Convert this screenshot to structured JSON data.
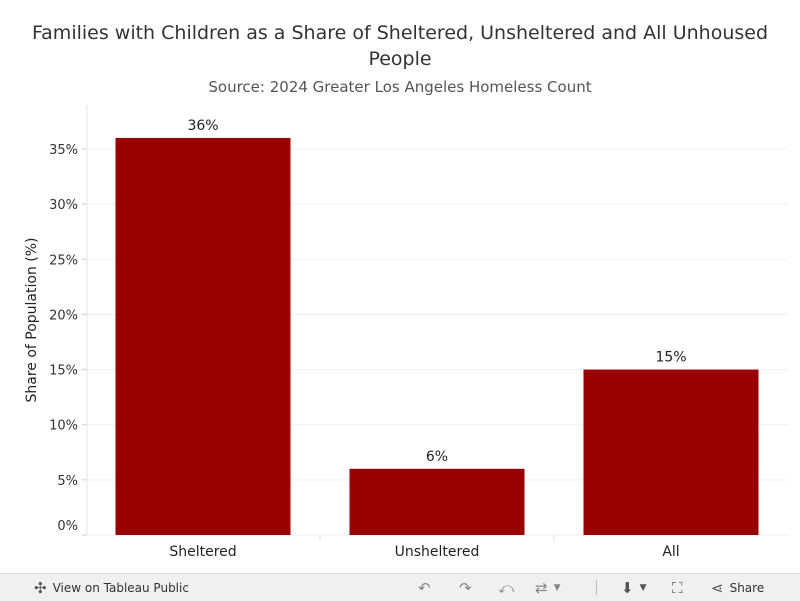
{
  "chart_data": {
    "type": "bar",
    "title": "Families with Children as a Share of Sheltered, Unsheltered and All Unhoused People",
    "subtitle": "Source: 2024 Greater Los Angeles Homeless Count",
    "xlabel": "",
    "ylabel": "Share of Population (%)",
    "categories": [
      "Sheltered",
      "Unsheltered",
      "All"
    ],
    "values": [
      36,
      6,
      15
    ],
    "data_labels": [
      "36%",
      "6%",
      "15%"
    ],
    "ylim": [
      0,
      37
    ],
    "yticks": [
      0,
      5,
      10,
      15,
      20,
      25,
      30,
      35
    ],
    "ytick_labels": [
      "0%",
      "5%",
      "10%",
      "15%",
      "20%",
      "25%",
      "30%",
      "35%"
    ],
    "bar_color": "#990000",
    "grid": true
  },
  "footer": {
    "view_label": "View on Tableau Public",
    "share_label": "Share"
  }
}
